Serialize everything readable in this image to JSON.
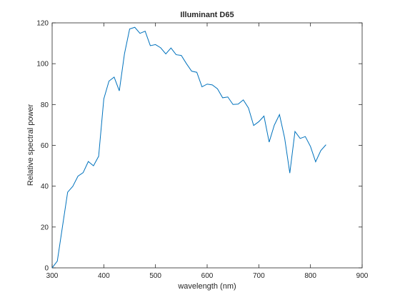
{
  "chart_data": {
    "type": "line",
    "title": "Illuminant D65",
    "xlabel": "wavelength (nm)",
    "ylabel": "Relative spectral power",
    "x": [
      300,
      310,
      320,
      330,
      340,
      350,
      360,
      370,
      380,
      390,
      400,
      410,
      420,
      430,
      440,
      450,
      460,
      470,
      480,
      490,
      500,
      510,
      520,
      530,
      540,
      550,
      560,
      570,
      580,
      590,
      600,
      610,
      620,
      630,
      640,
      650,
      660,
      670,
      680,
      690,
      700,
      710,
      720,
      730,
      740,
      750,
      760,
      770,
      780,
      790,
      800,
      810,
      820,
      830
    ],
    "values": [
      0.0341,
      3.2945,
      20.236,
      37.0535,
      39.9488,
      44.9117,
      46.6383,
      52.0891,
      49.9755,
      54.6482,
      82.7549,
      91.486,
      93.4318,
      86.6823,
      104.865,
      117.008,
      117.812,
      114.861,
      115.923,
      108.811,
      109.354,
      107.802,
      104.79,
      107.689,
      104.405,
      104.046,
      100,
      96.3342,
      95.788,
      88.6856,
      90.0062,
      89.5991,
      87.6987,
      83.2886,
      83.6992,
      80.0268,
      80.2146,
      82.2778,
      78.2842,
      69.7213,
      71.6091,
      74.349,
      61.604,
      69.8856,
      75.087,
      63.5927,
      46.4182,
      66.8054,
      63.3828,
      64.304,
      59.4519,
      51.959,
      57.4406,
      60.3125
    ],
    "color": "#0072bd",
    "xlim": [
      300,
      900
    ],
    "xticks": [
      300,
      400,
      500,
      600,
      700,
      800,
      900
    ],
    "ylim": [
      0,
      120
    ],
    "yticks": [
      0,
      20,
      40,
      60,
      80,
      100,
      120
    ],
    "grid": false
  }
}
